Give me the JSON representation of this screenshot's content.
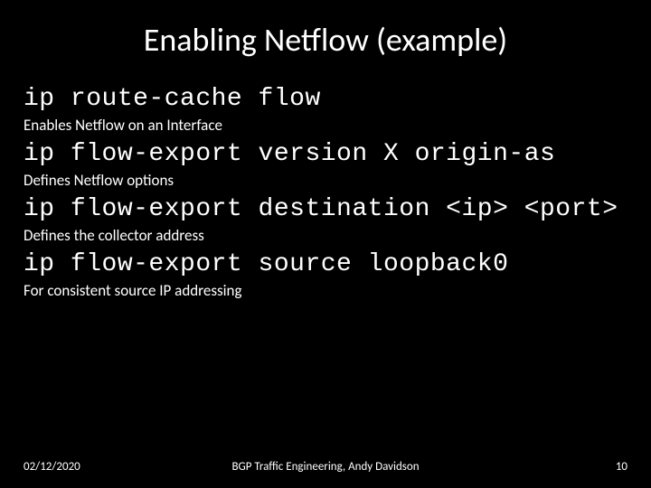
{
  "slide": {
    "title": "Enabling Netflow (example)",
    "items": [
      {
        "command": "ip route-cache flow",
        "description": "Enables Netflow on an Interface"
      },
      {
        "command": "ip flow-export version X origin-as",
        "description": "Defines Netflow options"
      },
      {
        "command": "ip flow-export destination <ip> <port>",
        "description": "Defines the collector address"
      },
      {
        "command": "ip flow-export source loopback0",
        "description": "For consistent source IP addressing"
      }
    ]
  },
  "footer": {
    "date": "02/12/2020",
    "center": "BGP Traffic Engineering, Andy Davidson",
    "page": "10"
  },
  "style": {
    "background_color": "#000000",
    "text_color": "#ffffff",
    "title_fontsize": 36,
    "command_font": "Courier New",
    "command_fontsize": 28,
    "description_font": "Calibri",
    "description_fontsize": 17,
    "footer_fontsize": 13
  }
}
